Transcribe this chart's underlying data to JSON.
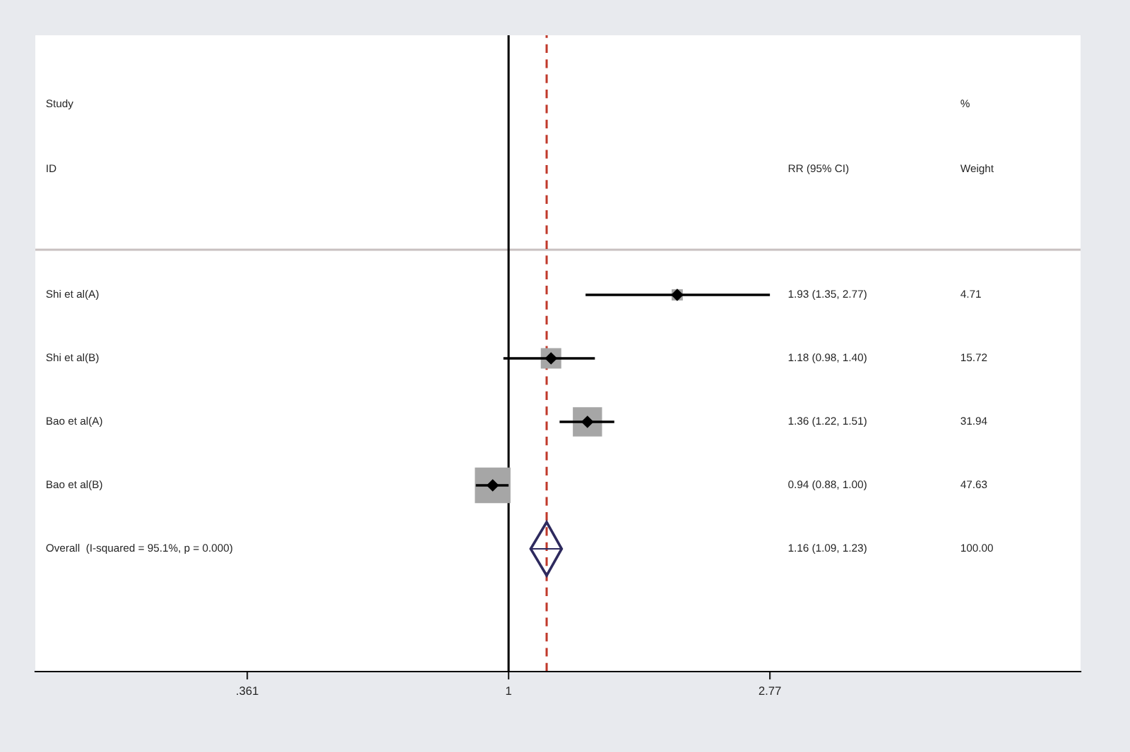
{
  "chart_data": {
    "type": "scatter",
    "orientation": "horizontal",
    "categories": [
      "Shi et al(A)",
      "Shi et al(B)",
      "Bao et al(A)",
      "Bao et al(B)",
      "Overall  (I-squared = 95.1%, p = 0.000)"
    ],
    "series": [
      {
        "marker": "square",
        "color": "#a6a6a6",
        "values": [
          1.93,
          1.18,
          1.36,
          0.94,
          null
        ],
        "errors": [
          [
            1.35,
            2.77
          ],
          [
            0.98,
            1.4
          ],
          [
            1.22,
            1.51
          ],
          [
            0.88,
            1.0
          ],
          null
        ],
        "sizes": [
          0.099,
          0.33,
          0.671,
          1,
          null
        ]
      },
      {
        "marker": "diamond",
        "color": "#2e2a5e",
        "values": [
          null,
          null,
          null,
          null,
          1.16
        ],
        "errors": [
          null,
          null,
          null,
          null,
          [
            1.09,
            1.23
          ]
        ]
      }
    ],
    "annotations": [
      "Study",
      "ID",
      "RR (95% CI)",
      "%",
      "Weight",
      "1.93 (1.35, 2.77)",
      "1.18 (0.98, 1.40)",
      "1.36 (1.22, 1.51)",
      "0.94 (0.88, 1.00)",
      "1.16 (1.09, 1.23)",
      "4.71",
      "15.72",
      "31.94",
      "47.63",
      "100.00"
    ],
    "ref_lines": [
      {
        "axis": "x",
        "value": 1,
        "color": "#000000",
        "line_style": "solid"
      },
      {
        "axis": "x",
        "value": 1.16,
        "color": "#c0392b",
        "line_style": "dashed"
      }
    ],
    "log": "x",
    "xlim": [
      0.158,
      9.3
    ],
    "xticks": [
      {
        "value": 0.361,
        "label": ".361"
      },
      1,
      {
        "value": 2.77,
        "label": "2.77"
      }
    ],
    "tick_labels": "x",
    "grid": false,
    "legend": false
  }
}
